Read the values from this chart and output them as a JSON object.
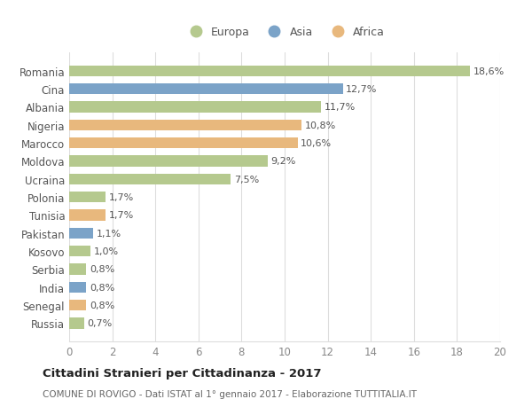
{
  "categories": [
    "Romania",
    "Cina",
    "Albania",
    "Nigeria",
    "Marocco",
    "Moldova",
    "Ucraina",
    "Polonia",
    "Tunisia",
    "Pakistan",
    "Kosovo",
    "Serbia",
    "India",
    "Senegal",
    "Russia"
  ],
  "values": [
    18.6,
    12.7,
    11.7,
    10.8,
    10.6,
    9.2,
    7.5,
    1.7,
    1.7,
    1.1,
    1.0,
    0.8,
    0.8,
    0.8,
    0.7
  ],
  "labels": [
    "18,6%",
    "12,7%",
    "11,7%",
    "10,8%",
    "10,6%",
    "9,2%",
    "7,5%",
    "1,7%",
    "1,7%",
    "1,1%",
    "1,0%",
    "0,8%",
    "0,8%",
    "0,8%",
    "0,7%"
  ],
  "continents": [
    "Europa",
    "Asia",
    "Europa",
    "Africa",
    "Africa",
    "Europa",
    "Europa",
    "Europa",
    "Africa",
    "Asia",
    "Europa",
    "Europa",
    "Asia",
    "Africa",
    "Europa"
  ],
  "colors": {
    "Europa": "#b5c98e",
    "Asia": "#7ba3c8",
    "Africa": "#e8b87d"
  },
  "xlim": [
    0,
    20
  ],
  "xticks": [
    0,
    2,
    4,
    6,
    8,
    10,
    12,
    14,
    16,
    18,
    20
  ],
  "title": "Cittadini Stranieri per Cittadinanza - 2017",
  "subtitle": "COMUNE DI ROVIGO - Dati ISTAT al 1° gennaio 2017 - Elaborazione TUTTITALIA.IT",
  "background_color": "#ffffff",
  "grid_color": "#dddddd",
  "bar_height": 0.6,
  "label_fontsize": 8,
  "ytick_fontsize": 8.5,
  "xtick_fontsize": 8.5,
  "legend_order": [
    "Europa",
    "Asia",
    "Africa"
  ]
}
